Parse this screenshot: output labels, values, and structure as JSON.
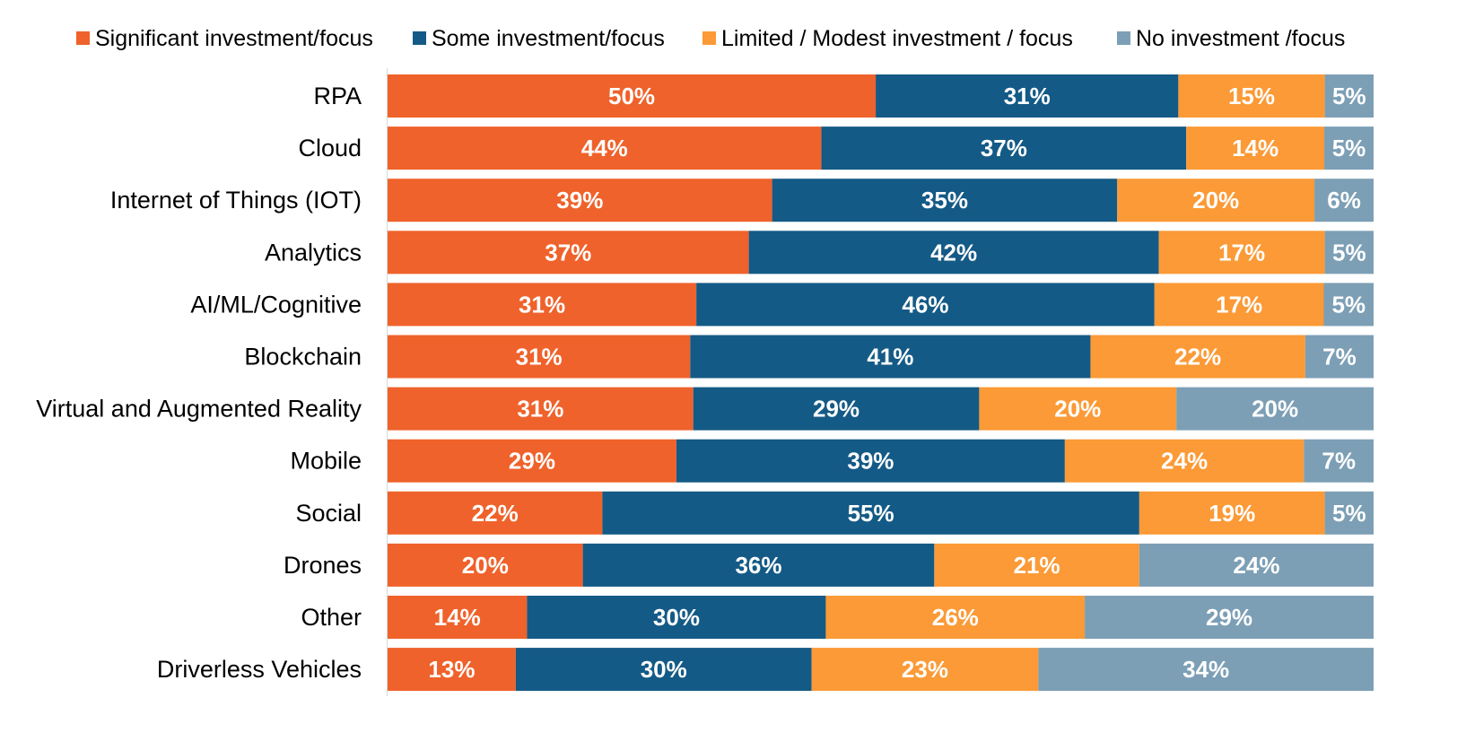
{
  "chart_data": {
    "type": "bar",
    "orientation": "horizontal",
    "stacked": "percent",
    "title": "",
    "xlabel": "",
    "ylabel": "",
    "xlim": [
      0,
      100
    ],
    "grid": false,
    "legend_position": "top",
    "categories": [
      "RPA",
      "Cloud",
      "Internet of Things (IOT)",
      "Analytics",
      "AI/ML/Cognitive",
      "Blockchain",
      "Virtual and Augmented Reality",
      "Mobile",
      "Social",
      "Drones",
      "Other",
      "Driverless Vehicles"
    ],
    "series": [
      {
        "name": "Significant investment/focus",
        "color": "#EF622B",
        "values": [
          50,
          44,
          39,
          37,
          31,
          31,
          31,
          29,
          22,
          20,
          14,
          13
        ]
      },
      {
        "name": "Some investment/focus",
        "color": "#145A86",
        "values": [
          31,
          37,
          35,
          42,
          46,
          41,
          29,
          39,
          55,
          36,
          30,
          30
        ]
      },
      {
        "name": "Limited / Modest investment / focus",
        "color": "#FB9A36",
        "values": [
          15,
          14,
          20,
          17,
          17,
          22,
          20,
          24,
          19,
          21,
          26,
          23
        ]
      },
      {
        "name": "No investment /focus",
        "color": "#7C9FB5",
        "values": [
          5,
          5,
          6,
          5,
          5,
          7,
          20,
          7,
          5,
          24,
          29,
          34
        ]
      }
    ],
    "value_suffix": "%"
  }
}
